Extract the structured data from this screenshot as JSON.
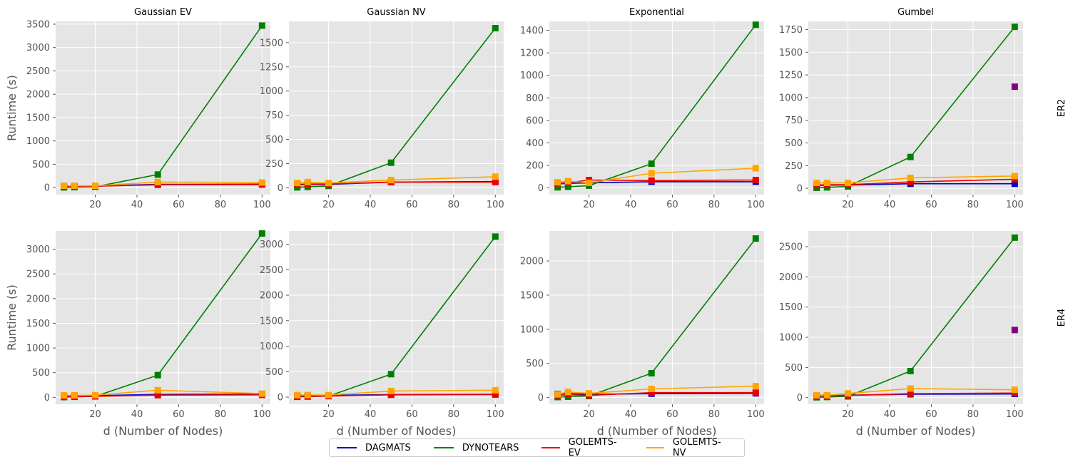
{
  "legend": [
    {
      "name": "DAGMATS",
      "color": "#0000cc"
    },
    {
      "name": "DYNOTEARS",
      "color": "#008000"
    },
    {
      "name": "GOLEMTS-EV",
      "color": "#ee0000"
    },
    {
      "name": "GOLEMTS-NV",
      "color": "#ffa500"
    }
  ],
  "row_labels": [
    "ER2",
    "ER4"
  ],
  "column_titles": [
    "Gaussian EV",
    "Gaussian NV",
    "Exponential",
    "Gumbel"
  ],
  "chart_data": [
    {
      "type": "line",
      "title": "Gaussian EV",
      "row": "ER2",
      "xlabel": "",
      "ylabel": "Runtime (s)",
      "x": [
        5,
        10,
        20,
        50,
        100
      ],
      "xticks": [
        20,
        40,
        60,
        80,
        100
      ],
      "yticks": [
        0,
        500,
        1000,
        1500,
        2000,
        2500,
        3000,
        3500
      ],
      "ylim": [
        -150,
        3560
      ],
      "series": [
        {
          "name": "DAGMATS",
          "color": "#0000cc",
          "values": [
            20,
            25,
            35,
            70,
            75
          ]
        },
        {
          "name": "DYNOTEARS",
          "color": "#008000",
          "values": [
            5,
            10,
            20,
            280,
            3470
          ]
        },
        {
          "name": "GOLEMTS-EV",
          "color": "#ee0000",
          "values": [
            25,
            30,
            30,
            60,
            65
          ]
        },
        {
          "name": "GOLEMTS-NV",
          "color": "#ffa500",
          "values": [
            40,
            40,
            40,
            120,
            110
          ]
        }
      ],
      "extra_points": []
    },
    {
      "type": "line",
      "title": "Gaussian NV",
      "row": "ER2",
      "xlabel": "",
      "ylabel": "",
      "x": [
        5,
        10,
        20,
        50,
        100
      ],
      "xticks": [
        20,
        40,
        60,
        80,
        100
      ],
      "yticks": [
        0,
        250,
        500,
        750,
        1000,
        1250,
        1500
      ],
      "ylim": [
        -70,
        1720
      ],
      "series": [
        {
          "name": "DAGMATS",
          "color": "#0000cc",
          "values": [
            30,
            35,
            35,
            60,
            65
          ]
        },
        {
          "name": "DYNOTEARS",
          "color": "#008000",
          "values": [
            5,
            10,
            20,
            260,
            1650
          ]
        },
        {
          "name": "GOLEMTS-EV",
          "color": "#ee0000",
          "values": [
            35,
            40,
            40,
            60,
            60
          ]
        },
        {
          "name": "GOLEMTS-NV",
          "color": "#ffa500",
          "values": [
            50,
            60,
            50,
            80,
            115
          ]
        }
      ],
      "extra_points": []
    },
    {
      "type": "line",
      "title": "Exponential",
      "row": "ER2",
      "xlabel": "",
      "ylabel": "",
      "x": [
        5,
        10,
        20,
        50,
        100
      ],
      "xticks": [
        20,
        40,
        60,
        80,
        100
      ],
      "yticks": [
        0,
        200,
        400,
        600,
        800,
        1000,
        1200,
        1400
      ],
      "ylim": [
        -60,
        1480
      ],
      "series": [
        {
          "name": "DAGMATS",
          "color": "#0000cc",
          "values": [
            35,
            40,
            45,
            55,
            55
          ]
        },
        {
          "name": "DYNOTEARS",
          "color": "#008000",
          "values": [
            5,
            10,
            20,
            215,
            1450
          ]
        },
        {
          "name": "GOLEMTS-EV",
          "color": "#ee0000",
          "values": [
            40,
            45,
            70,
            65,
            70
          ]
        },
        {
          "name": "GOLEMTS-NV",
          "color": "#ffa500",
          "values": [
            50,
            60,
            45,
            130,
            175
          ]
        }
      ],
      "extra_points": []
    },
    {
      "type": "line",
      "title": "Gumbel",
      "row": "ER2",
      "xlabel": "",
      "ylabel": "",
      "x": [
        5,
        10,
        20,
        50,
        100
      ],
      "xticks": [
        20,
        40,
        60,
        80,
        100
      ],
      "yticks": [
        0,
        250,
        500,
        750,
        1000,
        1250,
        1500,
        1750
      ],
      "ylim": [
        -70,
        1840
      ],
      "series": [
        {
          "name": "DAGMATS",
          "color": "#0000cc",
          "values": [
            30,
            35,
            35,
            50,
            50
          ]
        },
        {
          "name": "DYNOTEARS",
          "color": "#008000",
          "values": [
            5,
            10,
            20,
            345,
            1780
          ]
        },
        {
          "name": "GOLEMTS-EV",
          "color": "#ee0000",
          "values": [
            35,
            40,
            40,
            70,
            100
          ]
        },
        {
          "name": "GOLEMTS-NV",
          "color": "#ffa500",
          "values": [
            60,
            60,
            60,
            115,
            135
          ]
        }
      ],
      "extra_points": [
        {
          "x": 100,
          "y": 1120,
          "color": "#800080"
        }
      ]
    },
    {
      "type": "line",
      "title": "",
      "row": "ER4",
      "xlabel": "d (Number of Nodes)",
      "ylabel": "Runtime (s)",
      "x": [
        5,
        10,
        20,
        50,
        100
      ],
      "xticks": [
        20,
        40,
        60,
        80,
        100
      ],
      "yticks": [
        0,
        500,
        1000,
        1500,
        2000,
        2500,
        3000
      ],
      "ylim": [
        -140,
        3370
      ],
      "series": [
        {
          "name": "DAGMATS",
          "color": "#0000cc",
          "values": [
            25,
            30,
            35,
            60,
            65
          ]
        },
        {
          "name": "DYNOTEARS",
          "color": "#008000",
          "values": [
            5,
            10,
            20,
            450,
            3320
          ]
        },
        {
          "name": "GOLEMTS-EV",
          "color": "#ee0000",
          "values": [
            10,
            15,
            20,
            45,
            50
          ]
        },
        {
          "name": "GOLEMTS-NV",
          "color": "#ffa500",
          "values": [
            40,
            40,
            45,
            145,
            75
          ]
        }
      ],
      "extra_points": []
    },
    {
      "type": "line",
      "title": "",
      "row": "ER4",
      "xlabel": "d (Number of Nodes)",
      "ylabel": "",
      "x": [
        5,
        10,
        20,
        50,
        100
      ],
      "xticks": [
        20,
        40,
        60,
        80,
        100
      ],
      "yticks": [
        0,
        500,
        1000,
        1500,
        2000,
        2500,
        3000
      ],
      "ylim": [
        -140,
        3260
      ],
      "series": [
        {
          "name": "DAGMATS",
          "color": "#0000cc",
          "values": [
            25,
            30,
            35,
            50,
            55
          ]
        },
        {
          "name": "DYNOTEARS",
          "color": "#008000",
          "values": [
            5,
            10,
            20,
            450,
            3150
          ]
        },
        {
          "name": "GOLEMTS-EV",
          "color": "#ee0000",
          "values": [
            15,
            15,
            20,
            45,
            50
          ]
        },
        {
          "name": "GOLEMTS-NV",
          "color": "#ffa500",
          "values": [
            40,
            40,
            40,
            120,
            135
          ]
        }
      ],
      "extra_points": []
    },
    {
      "type": "line",
      "title": "",
      "row": "ER4",
      "xlabel": "d (Number of Nodes)",
      "ylabel": "",
      "x": [
        5,
        10,
        20,
        50,
        100
      ],
      "xticks": [
        20,
        40,
        60,
        80,
        100
      ],
      "yticks": [
        0,
        500,
        1000,
        1500,
        2000
      ],
      "ylim": [
        -100,
        2440
      ],
      "series": [
        {
          "name": "DAGMATS",
          "color": "#0000cc",
          "values": [
            50,
            55,
            45,
            55,
            60
          ]
        },
        {
          "name": "DYNOTEARS",
          "color": "#008000",
          "values": [
            5,
            10,
            20,
            355,
            2330
          ]
        },
        {
          "name": "GOLEMTS-EV",
          "color": "#ee0000",
          "values": [
            30,
            40,
            30,
            70,
            70
          ]
        },
        {
          "name": "GOLEMTS-NV",
          "color": "#ffa500",
          "values": [
            45,
            80,
            60,
            125,
            165
          ]
        }
      ],
      "extra_points": []
    },
    {
      "type": "line",
      "title": "",
      "row": "ER4",
      "xlabel": "d (Number of Nodes)",
      "ylabel": "",
      "x": [
        5,
        10,
        20,
        50,
        100
      ],
      "xticks": [
        20,
        40,
        60,
        80,
        100
      ],
      "yticks": [
        0,
        500,
        1000,
        1500,
        2000,
        2500
      ],
      "ylim": [
        -110,
        2760
      ],
      "series": [
        {
          "name": "DAGMATS",
          "color": "#0000cc",
          "values": [
            25,
            30,
            40,
            55,
            60
          ]
        },
        {
          "name": "DYNOTEARS",
          "color": "#008000",
          "values": [
            5,
            10,
            20,
            440,
            2650
          ]
        },
        {
          "name": "GOLEMTS-EV",
          "color": "#ee0000",
          "values": [
            30,
            30,
            35,
            65,
            75
          ]
        },
        {
          "name": "GOLEMTS-NV",
          "color": "#ffa500",
          "values": [
            40,
            40,
            70,
            150,
            130
          ]
        }
      ],
      "extra_points": [
        {
          "x": 100,
          "y": 1120,
          "color": "#800080"
        }
      ]
    }
  ]
}
